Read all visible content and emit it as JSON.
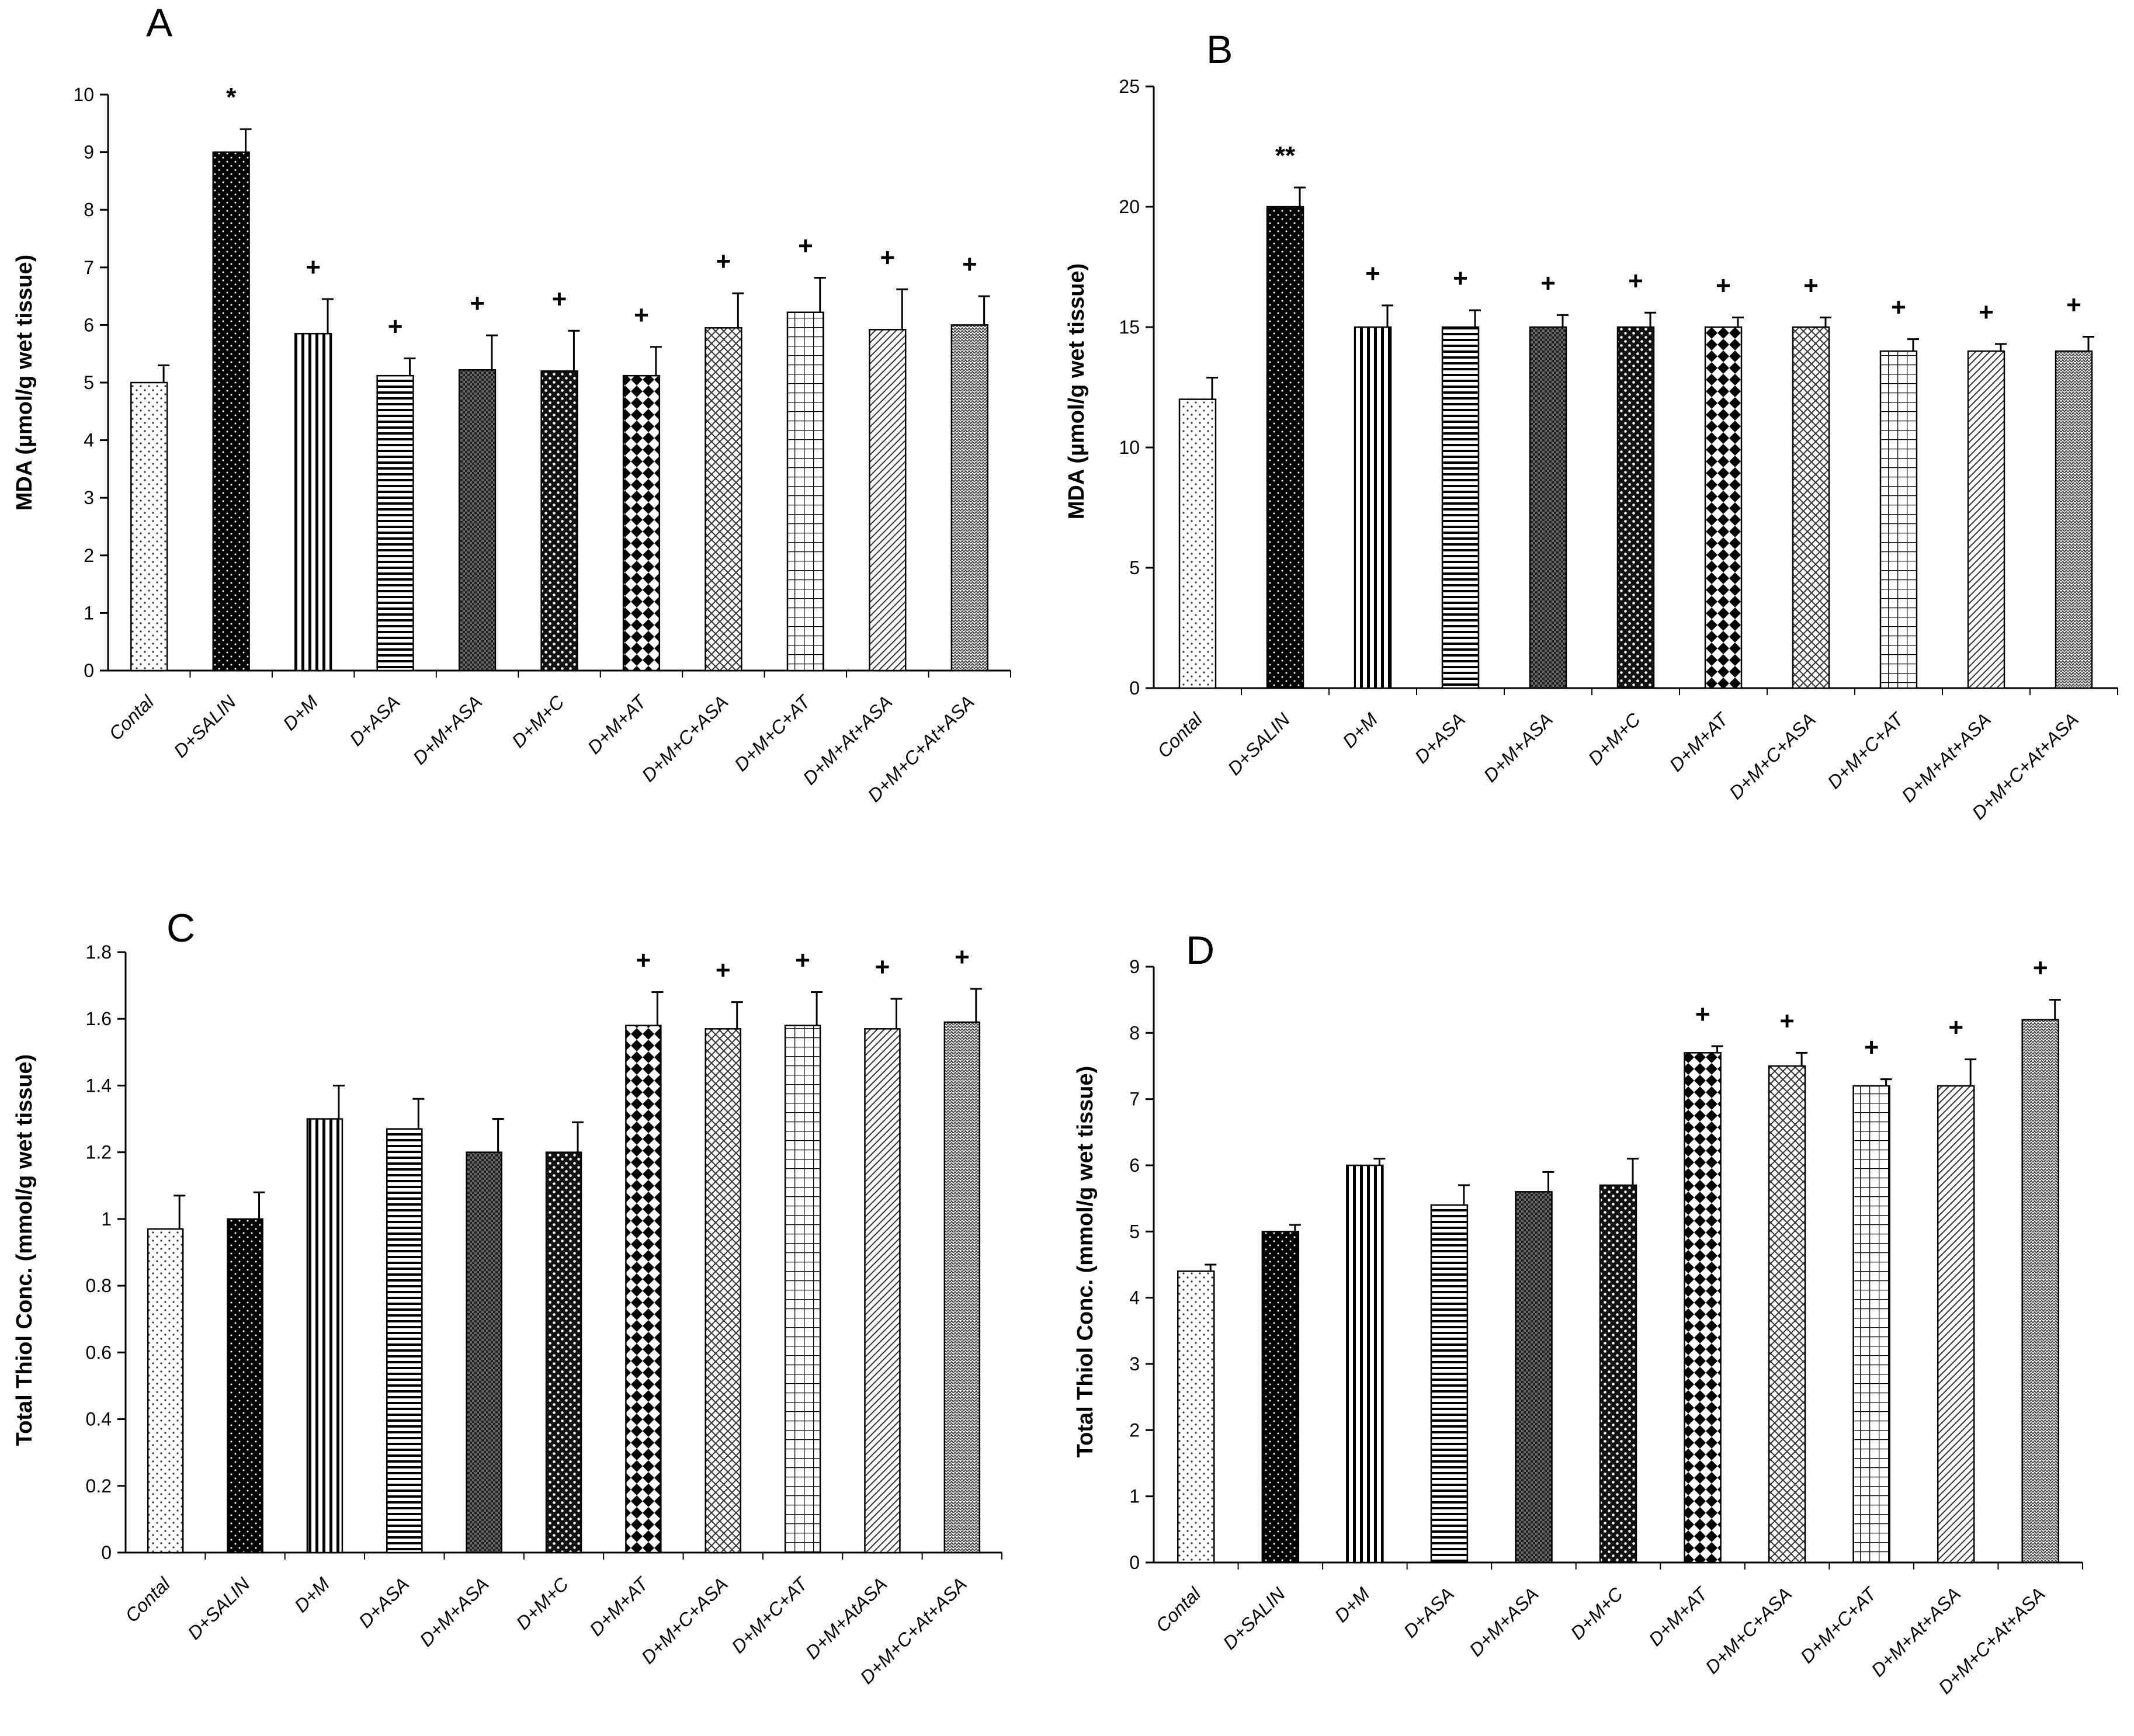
{
  "patterns": {
    "Contal": "dots-fine",
    "D+SALIN": "dots-dark",
    "D+M": "vlines",
    "D+ASA": "hlines",
    "D+M+ASA": "grid-fine",
    "D+M+C": "checker",
    "D+M+AT": "diamond",
    "D+M+C+ASA": "crosshatch",
    "D+M+C+AT": "grid-large",
    "D+M+At+ASA": "diag",
    "D+M+C+At+ASA": "zigzag"
  },
  "colors": {
    "axis": "#000000",
    "background": "#ffffff",
    "dark_bar": "#000000"
  },
  "chart_data": [
    {
      "panel": "A",
      "type": "bar",
      "ylabel": "MDA (µmol/g wet tissue)",
      "ylim": [
        0,
        10
      ],
      "yticks": [
        "0",
        "1",
        "2",
        "3",
        "4",
        "5",
        "6",
        "7",
        "8",
        "9",
        "10"
      ],
      "categories": [
        "Contal",
        "D+SALIN",
        "D+M",
        "D+ASA",
        "D+M+ASA",
        "D+M+C",
        "D+M+AT",
        "D+M+C+ASA",
        "D+M+C+AT",
        "D+M+At+ASA",
        "D+M+C+At+ASA"
      ],
      "values": [
        5.0,
        9.0,
        5.85,
        5.12,
        5.22,
        5.2,
        5.12,
        5.95,
        6.22,
        5.92,
        6.0
      ],
      "errors": [
        0.3,
        0.4,
        0.6,
        0.3,
        0.6,
        0.7,
        0.5,
        0.6,
        0.6,
        0.7,
        0.5
      ],
      "significance": [
        "",
        "*",
        "+",
        "+",
        "+",
        "+",
        "+",
        "+",
        "+",
        "+",
        "+"
      ]
    },
    {
      "panel": "B",
      "type": "bar",
      "ylabel": "MDA (µmol/g wet tissue)",
      "ylim": [
        0,
        25
      ],
      "yticks": [
        "0",
        "5",
        "10",
        "15",
        "20",
        "25"
      ],
      "categories": [
        "Contal",
        "D+SALIN",
        "D+M",
        "D+ASA",
        "D+M+ASA",
        "D+M+C",
        "D+M+AT",
        "D+M+C+ASA",
        "D+M+C+AT",
        "D+M+At+ASA",
        "D+M+C+At+ASA"
      ],
      "values": [
        12.0,
        20.0,
        15.0,
        15.0,
        15.0,
        15.0,
        15.0,
        15.0,
        14.0,
        14.0,
        14.0
      ],
      "errors": [
        0.9,
        0.8,
        0.9,
        0.7,
        0.5,
        0.6,
        0.4,
        0.4,
        0.5,
        0.3,
        0.6
      ],
      "significance": [
        "",
        "**",
        "+",
        "+",
        "+",
        "+",
        "+",
        "+",
        "+",
        "+",
        "+"
      ]
    },
    {
      "panel": "C",
      "type": "bar",
      "ylabel": "Total Thiol Conc. (mmol/g wet tissue)",
      "ylim": [
        0,
        1.8
      ],
      "yticks": [
        "0",
        "0.2",
        "0.4",
        "0.6",
        "0.8",
        "1",
        "1.2",
        "1.4",
        "1.6",
        "1.8"
      ],
      "categories": [
        "Contal",
        "D+SALIN",
        "D+M",
        "D+ASA",
        "D+M+ASA",
        "D+M+C",
        "D+M+AT",
        "D+M+C+ASA",
        "D+M+C+AT",
        "D+M+AtASA",
        "D+M+C+At+ASA"
      ],
      "values": [
        0.97,
        1.0,
        1.3,
        1.27,
        1.2,
        1.2,
        1.58,
        1.57,
        1.58,
        1.57,
        1.59
      ],
      "errors": [
        0.1,
        0.08,
        0.1,
        0.09,
        0.1,
        0.09,
        0.1,
        0.08,
        0.1,
        0.09,
        0.1
      ],
      "significance": [
        "",
        "",
        "",
        "",
        "",
        "",
        "+",
        "+",
        "+",
        "+",
        "+"
      ]
    },
    {
      "panel": "D",
      "type": "bar",
      "ylabel": "Total Thiol Conc. (mmol/g wet tissue)",
      "ylim": [
        0,
        9
      ],
      "yticks": [
        "0",
        "1",
        "2",
        "3",
        "4",
        "5",
        "6",
        "7",
        "8",
        "9"
      ],
      "categories": [
        "Contal",
        "D+SALIN",
        "D+M",
        "D+ASA",
        "D+M+ASA",
        "D+M+C",
        "D+M+AT",
        "D+M+C+ASA",
        "D+M+C+AT",
        "D+M+At+ASA",
        "D+M+C+At+ASA"
      ],
      "values": [
        4.4,
        5.0,
        6.0,
        5.4,
        5.6,
        5.7,
        7.7,
        7.5,
        7.2,
        7.2,
        8.2
      ],
      "errors": [
        0.1,
        0.1,
        0.1,
        0.3,
        0.3,
        0.4,
        0.1,
        0.2,
        0.1,
        0.4,
        0.3
      ],
      "significance": [
        "",
        "",
        "",
        "",
        "",
        "",
        "+",
        "+",
        "+",
        "+",
        "+"
      ]
    }
  ]
}
